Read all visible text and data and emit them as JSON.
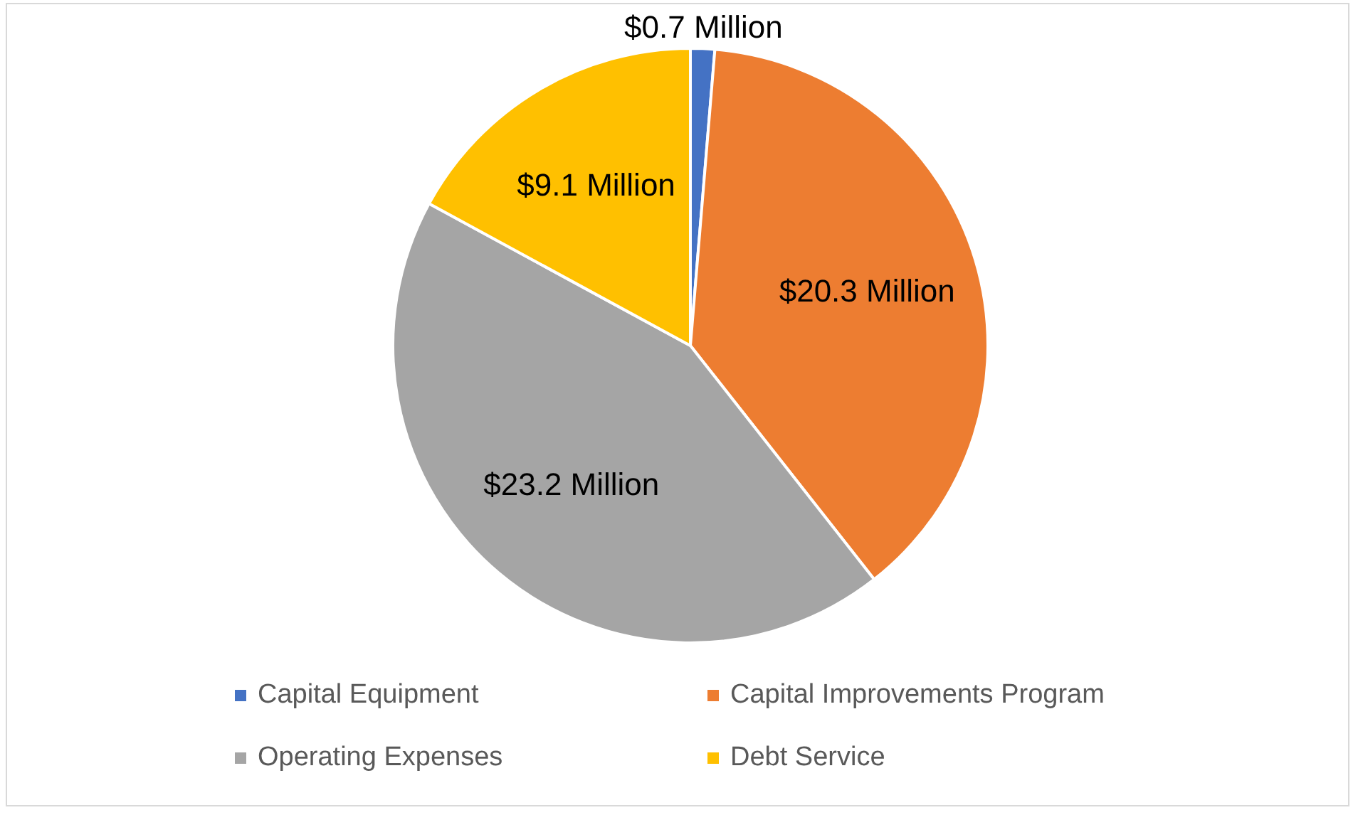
{
  "chart_data": {
    "type": "pie",
    "categories": [
      "Capital Equipment",
      "Capital Improvements Program",
      "Operating Expenses",
      "Debt Service"
    ],
    "values": [
      0.7,
      20.3,
      23.2,
      9.1
    ],
    "colors": [
      "#4472c4",
      "#ed7d31",
      "#a5a5a5",
      "#ffc000"
    ],
    "value_labels": [
      "$0.7 Million",
      "$20.3 Million",
      "$23.2 Million",
      "$9.1 Million"
    ],
    "legend": "bottom"
  }
}
